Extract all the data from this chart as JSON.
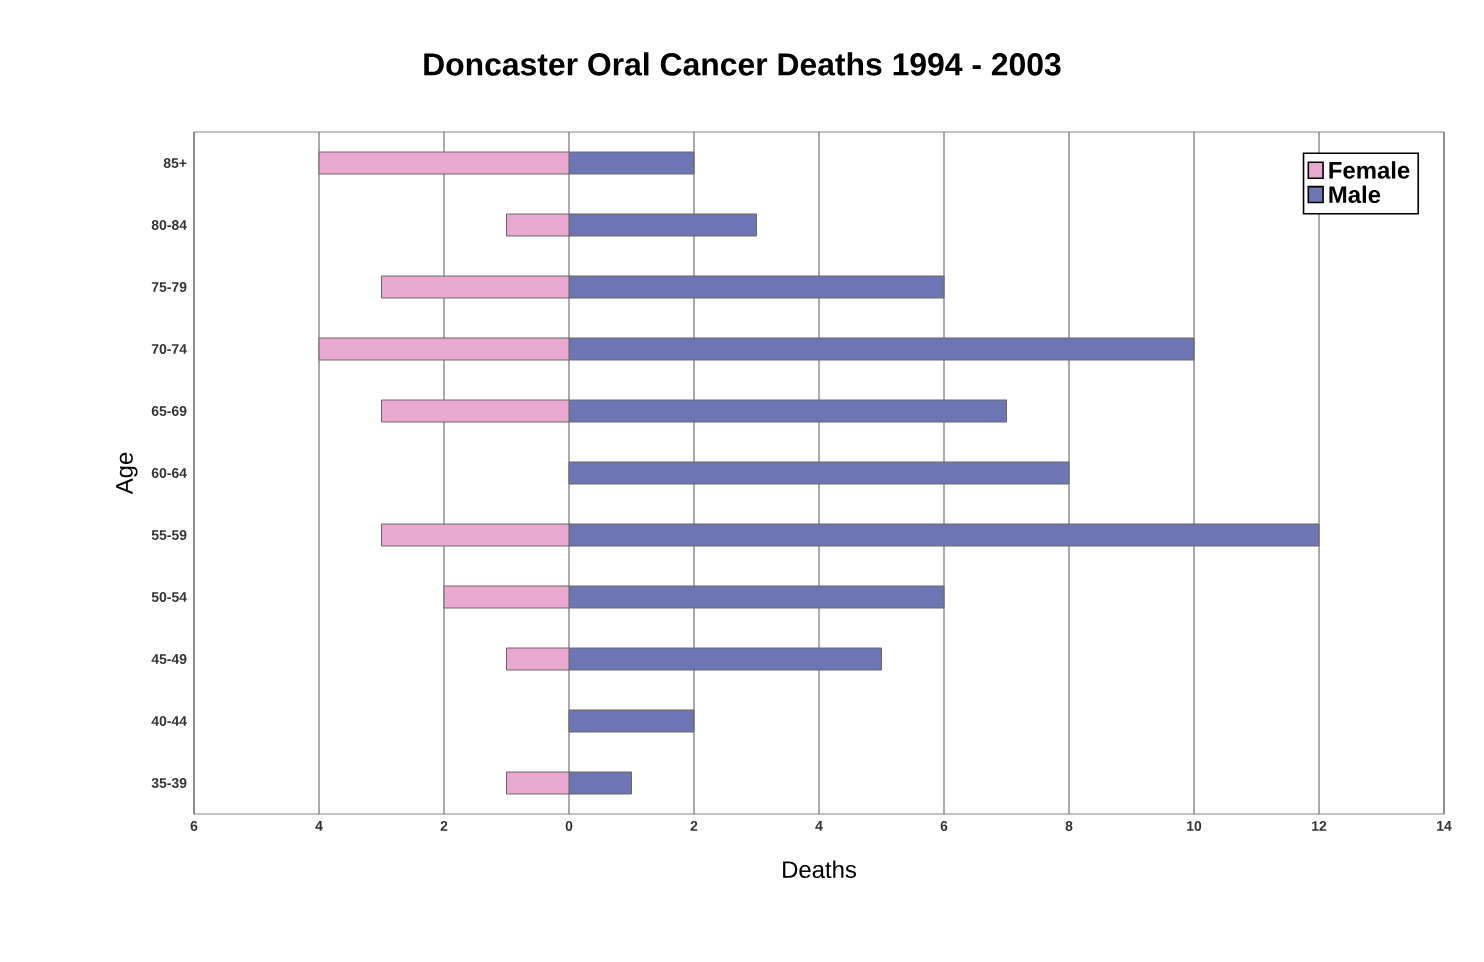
{
  "chart_data": {
    "type": "bar",
    "orientation": "horizontal",
    "title": "Doncaster Oral Cancer Deaths 1994 - 2003",
    "xlabel": "Deaths",
    "ylabel": "Age",
    "categories": [
      "85+",
      "80-84",
      "75-79",
      "70-74",
      "65-69",
      "60-64",
      "55-59",
      "50-54",
      "45-49",
      "40-44",
      "35-39"
    ],
    "series": [
      {
        "name": "Female",
        "color": "#e9a8cf",
        "values": [
          -4,
          -1,
          -3,
          -4,
          -3,
          null,
          -3,
          -2,
          -1,
          null,
          -1
        ]
      },
      {
        "name": "Male",
        "color": "#6d76b5",
        "values": [
          2,
          3,
          6,
          10,
          7,
          8,
          12,
          6,
          5,
          2,
          1
        ]
      }
    ],
    "xlim": [
      -6,
      14
    ],
    "xticks": [
      {
        "value": -6,
        "label": "6"
      },
      {
        "value": -4,
        "label": "4"
      },
      {
        "value": -2,
        "label": "2"
      },
      0,
      2,
      4,
      6,
      8,
      10,
      12,
      14
    ],
    "grid": "x",
    "legend": "top right",
    "stacked": true
  }
}
